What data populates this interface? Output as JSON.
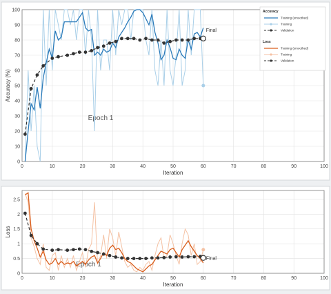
{
  "chart_data": [
    {
      "type": "line",
      "title": "",
      "xlabel": "Iteration",
      "ylabel": "Accuracy (%)",
      "xlim": [
        0,
        100
      ],
      "ylim": [
        0,
        100
      ],
      "xticks": [
        0,
        10,
        20,
        30,
        40,
        50,
        60,
        70,
        80,
        90,
        100
      ],
      "yticks": [
        0,
        10,
        20,
        30,
        40,
        50,
        60,
        70,
        80,
        90,
        100
      ],
      "grid": true,
      "legend_title": "Accuracy",
      "legend_location": "top-right",
      "annotations": {
        "epoch": "Epoch 1",
        "final": "Final"
      },
      "colors": {
        "smoothed": "#2b7bba",
        "raw": "#a9cfe8",
        "validation": "#333333"
      },
      "series": [
        {
          "name": "Training (smoothed)",
          "x": [
            1,
            2,
            3,
            4,
            5,
            6,
            7,
            8,
            9,
            10,
            11,
            12,
            13,
            14,
            15,
            16,
            17,
            18,
            19,
            20,
            21,
            22,
            23,
            24,
            25,
            26,
            27,
            28,
            29,
            30,
            31,
            32,
            33,
            34,
            35,
            36,
            37,
            38,
            39,
            40,
            41,
            42,
            43,
            44,
            45,
            46,
            47,
            48,
            49,
            50,
            51,
            52,
            53,
            54,
            55,
            56,
            57,
            58,
            59,
            60
          ],
          "y": [
            0,
            20,
            38,
            34,
            49,
            35,
            55,
            65,
            74,
            68,
            86,
            80,
            82,
            92,
            92,
            92,
            92,
            92,
            95,
            98,
            88,
            86,
            87,
            70,
            72,
            70,
            74,
            72,
            73,
            78,
            75,
            82,
            85,
            88,
            92,
            95,
            99,
            100,
            100,
            98,
            94,
            90,
            97,
            85,
            78,
            67,
            70,
            80,
            75,
            68,
            67,
            74,
            70,
            68,
            80,
            74,
            84,
            85,
            82,
            88
          ]
        },
        {
          "name": "Training",
          "x": [
            1,
            2,
            3,
            4,
            5,
            6,
            7,
            8,
            9,
            10,
            11,
            12,
            13,
            14,
            15,
            16,
            17,
            18,
            19,
            20,
            21,
            22,
            23,
            24,
            25,
            26,
            27,
            28,
            29,
            30,
            31,
            32,
            33,
            34,
            35,
            36,
            37,
            38,
            39,
            40,
            41,
            42,
            43,
            44,
            45,
            46,
            47,
            48,
            49,
            50,
            51,
            52,
            53,
            54,
            55,
            56,
            57,
            58,
            59,
            60
          ],
          "y": [
            0,
            60,
            20,
            50,
            10,
            0,
            100,
            50,
            100,
            60,
            100,
            90,
            80,
            100,
            100,
            90,
            100,
            80,
            100,
            100,
            70,
            100,
            80,
            20,
            100,
            60,
            80,
            80,
            60,
            100,
            70,
            100,
            90,
            100,
            100,
            80,
            100,
            100,
            100,
            100,
            80,
            70,
            100,
            60,
            50,
            80,
            50,
            100,
            60,
            50,
            70,
            100,
            50,
            60,
            100,
            70,
            100,
            100,
            100,
            50
          ]
        },
        {
          "name": "Validation",
          "x": [
            1,
            3,
            5,
            7,
            10,
            12,
            15,
            17,
            19,
            21,
            23,
            25,
            27,
            29,
            31,
            33,
            35,
            37,
            39,
            41,
            43,
            45,
            47,
            49,
            51,
            53,
            55,
            57,
            59,
            60
          ],
          "y": [
            18,
            48,
            57,
            63,
            68,
            69,
            70,
            71,
            72,
            72,
            73,
            75,
            76,
            78,
            79,
            81,
            81,
            81,
            80,
            81,
            80,
            80,
            78,
            79,
            80,
            80,
            80,
            81,
            81,
            81
          ]
        }
      ]
    },
    {
      "type": "line",
      "title": "",
      "xlabel": "Iteration",
      "ylabel": "Loss",
      "xlim": [
        0,
        100
      ],
      "ylim": [
        0,
        2.8
      ],
      "xticks": [
        0,
        10,
        20,
        30,
        40,
        50,
        60,
        70,
        80,
        90,
        100
      ],
      "yticks": [
        0,
        0.5,
        1,
        1.5,
        2,
        2.5
      ],
      "grid": true,
      "legend_title": "Loss",
      "legend_location": "top-right",
      "annotations": {
        "epoch": "Epoch 1",
        "final": "Final"
      },
      "colors": {
        "smoothed": "#d95f1e",
        "raw": "#f5c2a4",
        "validation": "#333333"
      },
      "series": [
        {
          "name": "Training (smoothed)",
          "x": [
            1,
            2,
            3,
            4,
            5,
            6,
            7,
            8,
            9,
            10,
            11,
            12,
            13,
            14,
            15,
            16,
            17,
            18,
            19,
            20,
            21,
            22,
            23,
            24,
            25,
            26,
            27,
            28,
            29,
            30,
            31,
            32,
            33,
            34,
            35,
            36,
            37,
            38,
            39,
            40,
            41,
            42,
            43,
            44,
            45,
            46,
            47,
            48,
            49,
            50,
            51,
            52,
            53,
            54,
            55,
            56,
            57,
            58,
            59,
            60
          ],
          "y": [
            2.65,
            2.72,
            1.5,
            1.1,
            0.85,
            0.55,
            0.75,
            0.45,
            0.3,
            0.35,
            0.5,
            0.3,
            0.4,
            0.3,
            0.35,
            0.32,
            0.4,
            0.25,
            0.32,
            0.4,
            0.3,
            0.45,
            0.55,
            0.6,
            0.35,
            0.5,
            0.7,
            0.6,
            0.85,
            0.95,
            0.8,
            0.85,
            0.7,
            0.5,
            0.4,
            0.35,
            0.25,
            0.15,
            0.1,
            0.05,
            0.15,
            0.25,
            0.3,
            0.45,
            0.6,
            0.75,
            0.7,
            0.65,
            0.8,
            0.85,
            0.7,
            0.55,
            0.8,
            0.95,
            1.1,
            0.9,
            0.75,
            0.6,
            0.5,
            0.35
          ]
        },
        {
          "name": "Training",
          "x": [
            1,
            2,
            3,
            4,
            5,
            6,
            7,
            8,
            9,
            10,
            11,
            12,
            13,
            14,
            15,
            16,
            17,
            18,
            19,
            20,
            21,
            22,
            23,
            24,
            25,
            26,
            27,
            28,
            29,
            30,
            31,
            32,
            33,
            34,
            35,
            36,
            37,
            38,
            39,
            40,
            41,
            42,
            43,
            44,
            45,
            46,
            47,
            48,
            49,
            50,
            51,
            52,
            53,
            54,
            55,
            56,
            57,
            58,
            59,
            60
          ],
          "y": [
            2.7,
            2.4,
            1.2,
            0.9,
            0.5,
            0.3,
            1.0,
            0.2,
            0.1,
            0.6,
            0.7,
            0.1,
            0.6,
            0.2,
            0.5,
            0.2,
            0.6,
            0.1,
            0.4,
            0.7,
            0.2,
            0.8,
            1.0,
            2.4,
            0.3,
            0.6,
            1.3,
            0.5,
            1.5,
            1.2,
            0.6,
            1.4,
            0.9,
            0.4,
            0.2,
            0.3,
            0.1,
            0.05,
            0.2,
            0.1,
            0.3,
            0.4,
            0.1,
            0.6,
            1.0,
            1.2,
            0.5,
            0.6,
            1.3,
            1.0,
            0.6,
            0.3,
            1.0,
            1.5,
            1.3,
            0.6,
            1.0,
            0.3,
            0.4,
            0.8
          ]
        },
        {
          "name": "Validation",
          "x": [
            1,
            3,
            5,
            7,
            10,
            12,
            15,
            17,
            19,
            21,
            23,
            25,
            27,
            29,
            31,
            33,
            35,
            37,
            39,
            41,
            43,
            45,
            47,
            49,
            51,
            53,
            55,
            57,
            59,
            60
          ],
          "y": [
            2.03,
            1.28,
            1.0,
            0.82,
            0.78,
            0.8,
            0.78,
            0.8,
            0.82,
            0.8,
            0.74,
            0.7,
            0.65,
            0.6,
            0.55,
            0.52,
            0.5,
            0.5,
            0.5,
            0.5,
            0.52,
            0.52,
            0.53,
            0.55,
            0.56,
            0.55,
            0.56,
            0.56,
            0.57,
            0.52
          ]
        }
      ]
    }
  ]
}
